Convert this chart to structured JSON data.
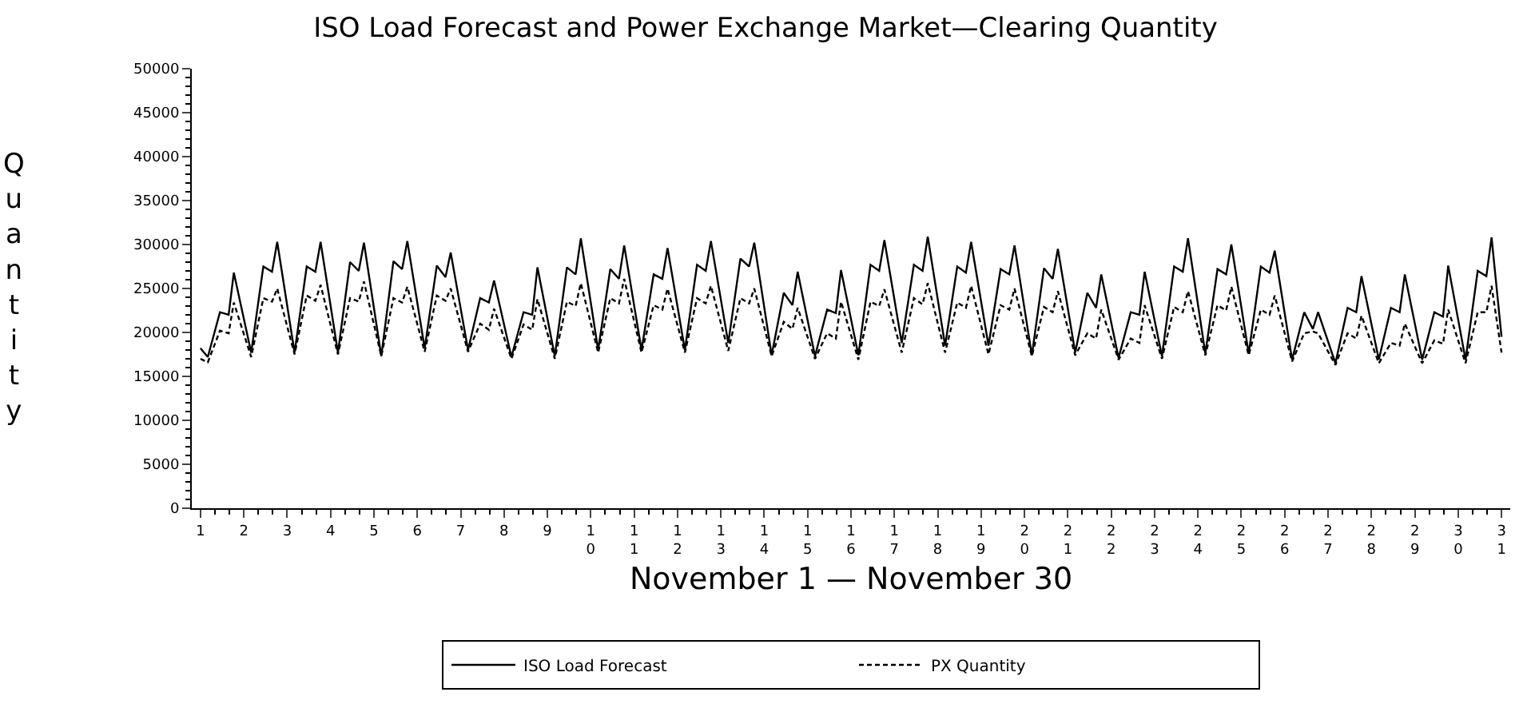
{
  "chart_data": {
    "type": "line",
    "title": "ISO Load Forecast and Power Exchange Market—Clearing Quantity",
    "xlabel": "November 1 — November 30",
    "ylabel": "Quantity",
    "x": [
      1,
      1.17,
      1.45,
      1.65,
      1.77,
      2.17,
      2.45,
      2.65,
      2.77,
      3.17,
      3.45,
      3.65,
      3.77,
      4.17,
      4.45,
      4.65,
      4.77,
      5.17,
      5.45,
      5.65,
      5.77,
      6.17,
      6.45,
      6.65,
      6.77,
      7.17,
      7.45,
      7.65,
      7.77,
      8.17,
      8.45,
      8.65,
      8.77,
      9.17,
      9.45,
      9.65,
      9.77,
      10.17,
      10.45,
      10.65,
      10.77,
      11.17,
      11.45,
      11.65,
      11.77,
      12.17,
      12.45,
      12.65,
      12.77,
      13.17,
      13.45,
      13.65,
      13.77,
      14.17,
      14.45,
      14.65,
      14.77,
      15.17,
      15.45,
      15.65,
      15.77,
      16.17,
      16.45,
      16.65,
      16.77,
      17.17,
      17.45,
      17.65,
      17.77,
      18.17,
      18.45,
      18.65,
      18.77,
      19.17,
      19.45,
      19.65,
      19.77,
      20.17,
      20.45,
      20.65,
      20.77,
      21.17,
      21.45,
      21.65,
      21.77,
      22.17,
      22.45,
      22.65,
      22.77,
      23.17,
      23.45,
      23.65,
      23.77,
      24.17,
      24.45,
      24.65,
      24.77,
      25.17,
      25.45,
      25.65,
      25.77,
      26.17,
      26.45,
      26.65,
      26.77,
      27.17,
      27.45,
      27.65,
      27.77,
      28.17,
      28.45,
      28.65,
      28.77,
      29.17,
      29.45,
      29.65,
      29.77,
      30.17,
      30.45,
      30.65,
      30.77,
      31
    ],
    "series": [
      {
        "name": "ISO Load Forecast",
        "color": "#000000",
        "line_style": "solid",
        "values": [
          18200,
          17200,
          22300,
          22000,
          26800,
          17700,
          27500,
          26900,
          30300,
          17700,
          27500,
          26900,
          30300,
          17700,
          28000,
          27000,
          30200,
          17300,
          28100,
          27200,
          30400,
          18200,
          27600,
          26300,
          29100,
          18000,
          23900,
          23400,
          25900,
          17200,
          22300,
          22000,
          27400,
          17300,
          27400,
          26600,
          30700,
          18000,
          27200,
          26100,
          29900,
          18000,
          26600,
          26100,
          29600,
          18000,
          27700,
          27000,
          30400,
          18800,
          28400,
          27500,
          30200,
          17400,
          24500,
          23100,
          26900,
          17300,
          22600,
          22200,
          27100,
          17400,
          27700,
          27000,
          30500,
          18800,
          27700,
          27000,
          30900,
          18500,
          27500,
          26800,
          30300,
          18500,
          27200,
          26600,
          29900,
          17400,
          27300,
          26100,
          29500,
          17700,
          24500,
          22800,
          26600,
          17100,
          22300,
          22000,
          26900,
          17300,
          27500,
          26900,
          30700,
          17600,
          27200,
          26600,
          30000,
          17600,
          27500,
          26800,
          29300,
          16900,
          22300,
          20400,
          22300,
          16500,
          22800,
          22300,
          26400,
          16900,
          22800,
          22300,
          26600,
          16900,
          22300,
          21800,
          27600,
          16900,
          27000,
          26400,
          30800,
          19500
        ]
      },
      {
        "name": "PX Quantity",
        "color": "#000000",
        "line_style": "dashed",
        "values": [
          17000,
          16600,
          20200,
          19900,
          23400,
          17200,
          23900,
          23500,
          25000,
          17500,
          24200,
          23600,
          25400,
          17500,
          23900,
          23500,
          25800,
          17300,
          23900,
          23400,
          25200,
          17800,
          24200,
          23600,
          25000,
          17800,
          21000,
          20300,
          22700,
          17000,
          20900,
          20300,
          23800,
          17000,
          23500,
          23000,
          25600,
          17700,
          23900,
          23300,
          26100,
          17700,
          23100,
          22600,
          25000,
          17700,
          23900,
          23300,
          25300,
          17900,
          23900,
          23300,
          25000,
          17300,
          21200,
          20400,
          22800,
          17000,
          19900,
          19300,
          23500,
          16900,
          23500,
          23000,
          24900,
          17700,
          23900,
          23200,
          25600,
          17700,
          23400,
          22800,
          25300,
          17500,
          23100,
          22600,
          25000,
          17300,
          22900,
          22300,
          24700,
          17400,
          19900,
          19300,
          22600,
          16900,
          19300,
          18800,
          23100,
          17000,
          22900,
          22300,
          24700,
          17400,
          23100,
          22500,
          25200,
          17400,
          22600,
          22000,
          24200,
          16700,
          19900,
          20100,
          19900,
          16300,
          19900,
          19300,
          21900,
          16500,
          18800,
          18500,
          21000,
          16500,
          19100,
          18700,
          22600,
          16500,
          22300,
          22300,
          25300,
          17700
        ]
      }
    ],
    "xlim": [
      0.8,
      31.2
    ],
    "xticks": [
      1,
      2,
      3,
      4,
      5,
      6,
      7,
      8,
      9,
      10,
      11,
      12,
      13,
      14,
      15,
      16,
      17,
      18,
      19,
      20,
      21,
      22,
      23,
      24,
      25,
      26,
      27,
      28,
      29,
      30,
      31
    ],
    "ylim": [
      0,
      50000
    ],
    "yticks": [
      0,
      5000,
      10000,
      15000,
      20000,
      25000,
      30000,
      35000,
      40000,
      45000,
      50000
    ],
    "grid": false,
    "legend": "bottom",
    "marker": "none"
  }
}
